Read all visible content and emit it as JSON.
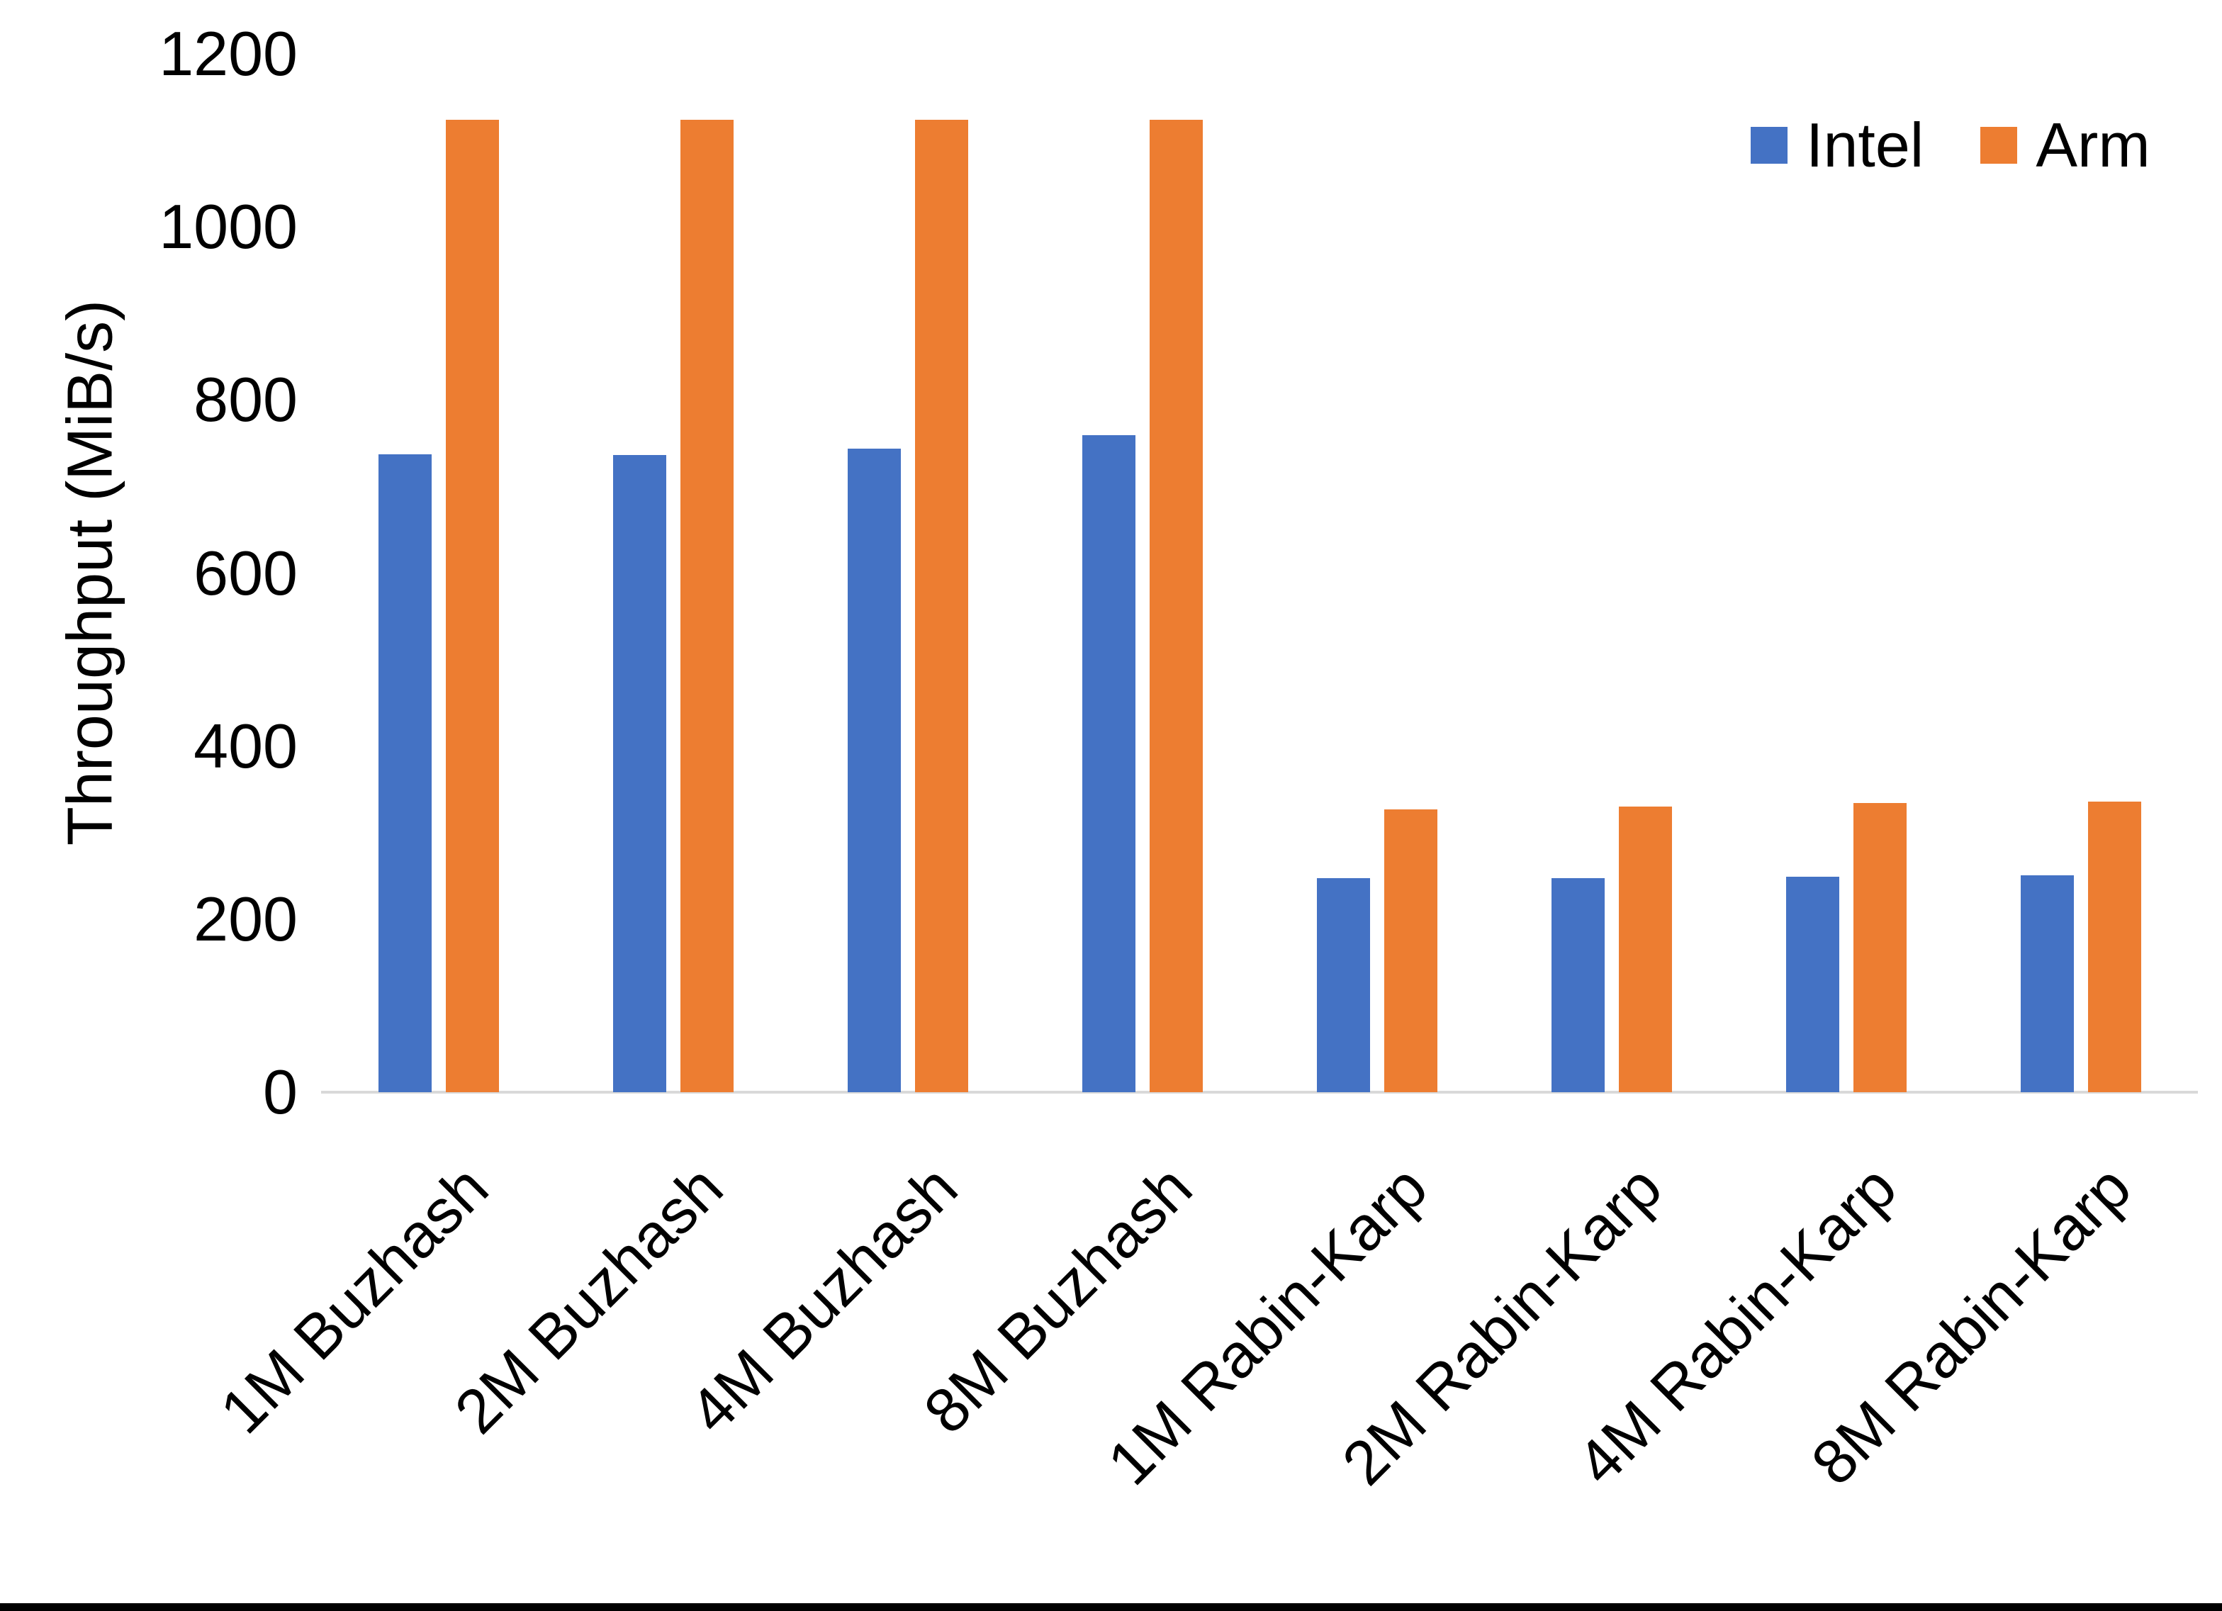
{
  "chart_data": {
    "type": "bar",
    "title": "",
    "xlabel": "",
    "ylabel": "Throughput (MiB/s)",
    "categories": [
      "1M Buzhash",
      "2M Buzhash",
      "4M Buzhash",
      "8M Buzhash",
      "1M Rabin-Karp",
      "2M Rabin-Karp",
      "4M Rabin-Karp",
      "8M Rabin-Karp"
    ],
    "series": [
      {
        "name": "Intel",
        "color": "#4472C4",
        "values": [
          737,
          736,
          744,
          759,
          247,
          247,
          249,
          251
        ]
      },
      {
        "name": "Arm",
        "color": "#ED7D31",
        "values": [
          1124,
          1124,
          1124,
          1124,
          327,
          330,
          334,
          336
        ]
      }
    ],
    "ylim": [
      0,
      1200
    ],
    "yticks": [
      0,
      200,
      400,
      600,
      800,
      1000,
      1200
    ],
    "grid": false,
    "legend_position": "top-right",
    "colors": {
      "axis_line": "#D9D9D9",
      "text": "#000000",
      "background": "#FFFFFF",
      "bottom_border": "#000000"
    }
  }
}
